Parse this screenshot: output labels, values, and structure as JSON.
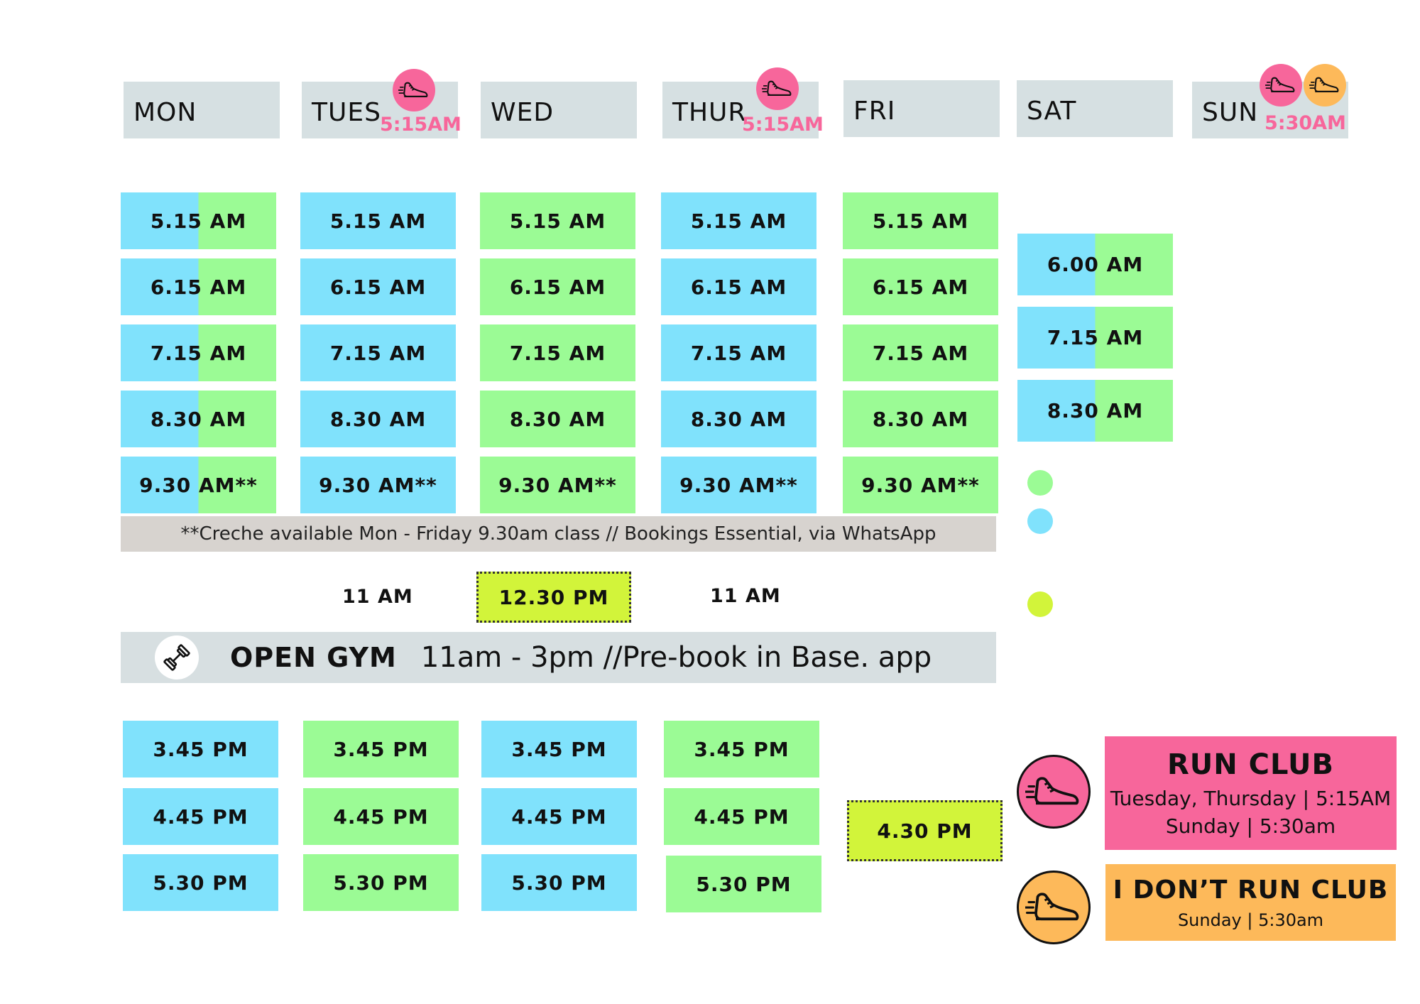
{
  "days": [
    "MON",
    "TUES",
    "WED",
    "THUR",
    "FRI",
    "SAT",
    "SUN"
  ],
  "run_times": {
    "tues": "5:15AM",
    "thur": "5:15AM",
    "sun": "5:30AM"
  },
  "morning": {
    "mon": [
      "5.15 AM",
      "6.15 AM",
      "7.15 AM",
      "8.30 AM",
      "9.30 AM**"
    ],
    "tues": [
      "5.15 AM",
      "6.15 AM",
      "7.15 AM",
      "8.30 AM",
      "9.30 AM**"
    ],
    "wed": [
      "5.15 AM",
      "6.15 AM",
      "7.15 AM",
      "8.30 AM",
      "9.30 AM**"
    ],
    "thur": [
      "5.15 AM",
      "6.15 AM",
      "7.15 AM",
      "8.30 AM",
      "9.30 AM**"
    ],
    "fri": [
      "5.15 AM",
      "6.15 AM",
      "7.15 AM",
      "8.30 AM",
      "9.30 AM**"
    ],
    "sat": [
      "6.00 AM",
      "7.15 AM",
      "8.30 AM"
    ]
  },
  "creche_note": "**Creche available Mon - Friday 9.30am class // Bookings Essential, via WhatsApp",
  "midday": {
    "tues": "11 AM",
    "wed": "12.30 PM",
    "thur": "11 AM"
  },
  "open_gym": {
    "title": "OPEN GYM",
    "detail": "11am - 3pm //Pre-book in Base. app"
  },
  "afternoon": {
    "mon": [
      "3.45 PM",
      "4.45 PM",
      "5.30 PM"
    ],
    "tues": [
      "3.45 PM",
      "4.45 PM",
      "5.30 PM"
    ],
    "wed": [
      "3.45 PM",
      "4.45 PM",
      "5.30 PM"
    ],
    "thur": [
      "3.45 PM",
      "4.45 PM",
      "5.30 PM"
    ],
    "fri": [
      "4.30 PM"
    ]
  },
  "run_club": {
    "title": "RUN CLUB",
    "line1": "Tuesday, Thursday | 5:15AM",
    "line2": "Sunday | 5:30am"
  },
  "dont_run_club": {
    "title": "I DON’T RUN CLUB",
    "line1": "Sunday | 5:30am"
  },
  "colors": {
    "blue": "#80e2fc",
    "green": "#9bfb95",
    "lime": "#d2f43a",
    "pink": "#f7669b",
    "orange": "#fdb95a",
    "header": "#d6e0e2",
    "note": "#d7d3cf"
  },
  "icons": [
    "running-shoe-icon",
    "dumbbell-icon"
  ]
}
